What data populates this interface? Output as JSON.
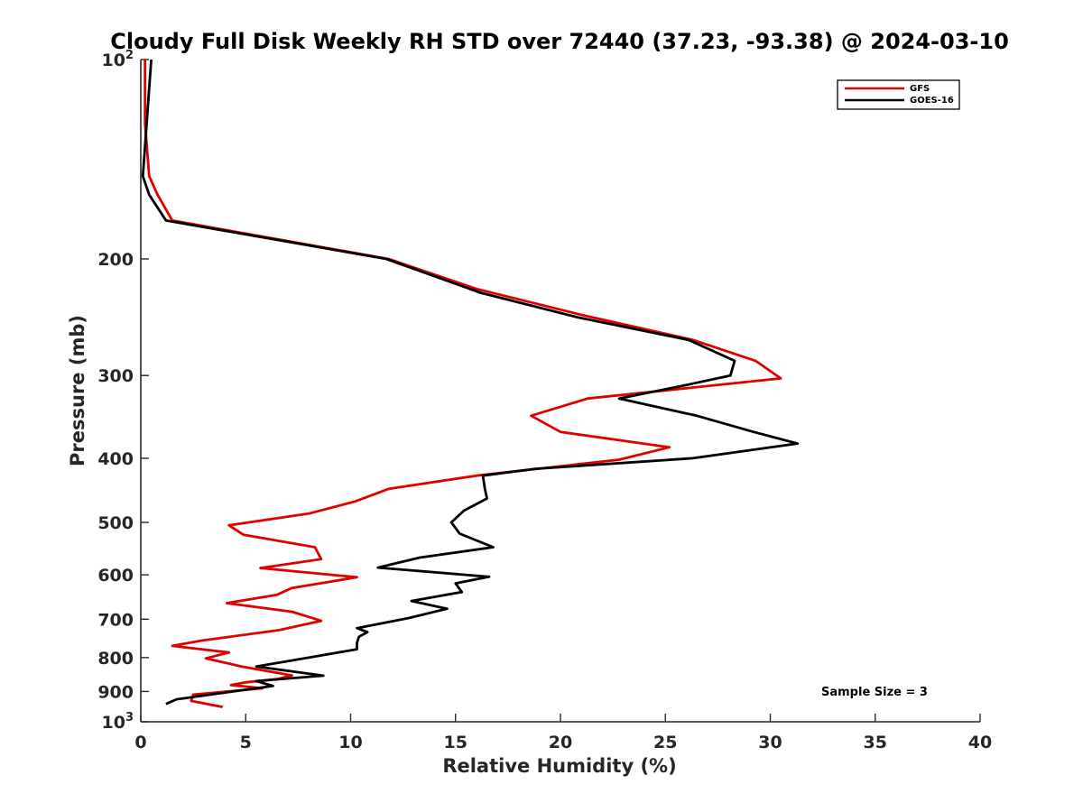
{
  "chart_data": {
    "type": "line",
    "title": "Cloudy Full Disk Weekly RH STD over 72440 (37.23, -93.38) @ 2024-03-10",
    "xlabel": "Relative Humidity (%)",
    "ylabel": "Pressure (mb)",
    "xlim": [
      0,
      40
    ],
    "ylim": [
      100,
      1000
    ],
    "y_scale": "log",
    "y_reversed": true,
    "grid": false,
    "legend_position": "top-right",
    "x_ticks": [
      "0",
      "5",
      "10",
      "15",
      "20",
      "25",
      "30",
      "35",
      "40"
    ],
    "y_ticks": [
      {
        "value": 100,
        "base": "10",
        "exp": "2"
      },
      {
        "value": 200,
        "label": "200"
      },
      {
        "value": 300,
        "label": "300"
      },
      {
        "value": 400,
        "label": "400"
      },
      {
        "value": 500,
        "label": "500"
      },
      {
        "value": 600,
        "label": "600"
      },
      {
        "value": 700,
        "label": "700"
      },
      {
        "value": 800,
        "label": "800"
      },
      {
        "value": 900,
        "label": "900"
      },
      {
        "value": 1000,
        "base": "10",
        "exp": "3"
      }
    ],
    "annotation": "Sample Size = 3",
    "series": [
      {
        "name": "GFS",
        "color": "#e00000",
        "points": [
          [
            0.2,
            100
          ],
          [
            0.2,
            125
          ],
          [
            0.4,
            150
          ],
          [
            0.8,
            160
          ],
          [
            1.5,
            175
          ],
          [
            11.8,
            200
          ],
          [
            16.0,
            222
          ],
          [
            21.0,
            243
          ],
          [
            26.3,
            265
          ],
          [
            29.3,
            285
          ],
          [
            30.5,
            303
          ],
          [
            21.3,
            325
          ],
          [
            18.6,
            345
          ],
          [
            20.0,
            365
          ],
          [
            25.2,
            385
          ],
          [
            22.8,
            402
          ],
          [
            16.0,
            425
          ],
          [
            11.8,
            445
          ],
          [
            10.2,
            465
          ],
          [
            8.0,
            485
          ],
          [
            4.2,
            505
          ],
          [
            4.9,
            522
          ],
          [
            8.3,
            545
          ],
          [
            8.6,
            568
          ],
          [
            5.7,
            586
          ],
          [
            10.3,
            605
          ],
          [
            7.2,
            628
          ],
          [
            6.5,
            643
          ],
          [
            4.1,
            662
          ],
          [
            7.2,
            682
          ],
          [
            8.6,
            704
          ],
          [
            6.6,
            727
          ],
          [
            2.9,
            754
          ],
          [
            1.5,
            768
          ],
          [
            4.2,
            786
          ],
          [
            3.1,
            802
          ],
          [
            4.8,
            825
          ],
          [
            7.2,
            851
          ],
          [
            6.5,
            862
          ],
          [
            5.0,
            872
          ],
          [
            4.3,
            880
          ],
          [
            5.8,
            890
          ],
          [
            2.5,
            910
          ],
          [
            2.4,
            930
          ],
          [
            3.9,
            950
          ]
        ]
      },
      {
        "name": "GOES-16",
        "color": "#000000",
        "points": [
          [
            0.5,
            100
          ],
          [
            0.1,
            150
          ],
          [
            0.4,
            160
          ],
          [
            1.2,
            175
          ],
          [
            11.7,
            200
          ],
          [
            16.2,
            225
          ],
          [
            20.8,
            245
          ],
          [
            26.1,
            265
          ],
          [
            28.3,
            285
          ],
          [
            28.1,
            300
          ],
          [
            26.0,
            310
          ],
          [
            22.8,
            325
          ],
          [
            26.5,
            345
          ],
          [
            29.2,
            365
          ],
          [
            31.3,
            380
          ],
          [
            26.3,
            400
          ],
          [
            18.8,
            415
          ],
          [
            16.3,
            425
          ],
          [
            16.4,
            445
          ],
          [
            16.5,
            460
          ],
          [
            15.4,
            480
          ],
          [
            14.8,
            500
          ],
          [
            15.2,
            520
          ],
          [
            16.8,
            545
          ],
          [
            13.3,
            565
          ],
          [
            11.3,
            585
          ],
          [
            16.6,
            604
          ],
          [
            15.0,
            618
          ],
          [
            15.3,
            637
          ],
          [
            12.9,
            657
          ],
          [
            14.6,
            675
          ],
          [
            12.8,
            697
          ],
          [
            10.3,
            722
          ],
          [
            10.8,
            732
          ],
          [
            10.4,
            744
          ],
          [
            10.3,
            760
          ],
          [
            10.3,
            777
          ],
          [
            8.0,
            800
          ],
          [
            5.5,
            825
          ],
          [
            8.7,
            852
          ],
          [
            5.5,
            868
          ],
          [
            6.3,
            883
          ],
          [
            4.4,
            900
          ],
          [
            1.7,
            925
          ],
          [
            1.2,
            940
          ]
        ]
      }
    ]
  }
}
